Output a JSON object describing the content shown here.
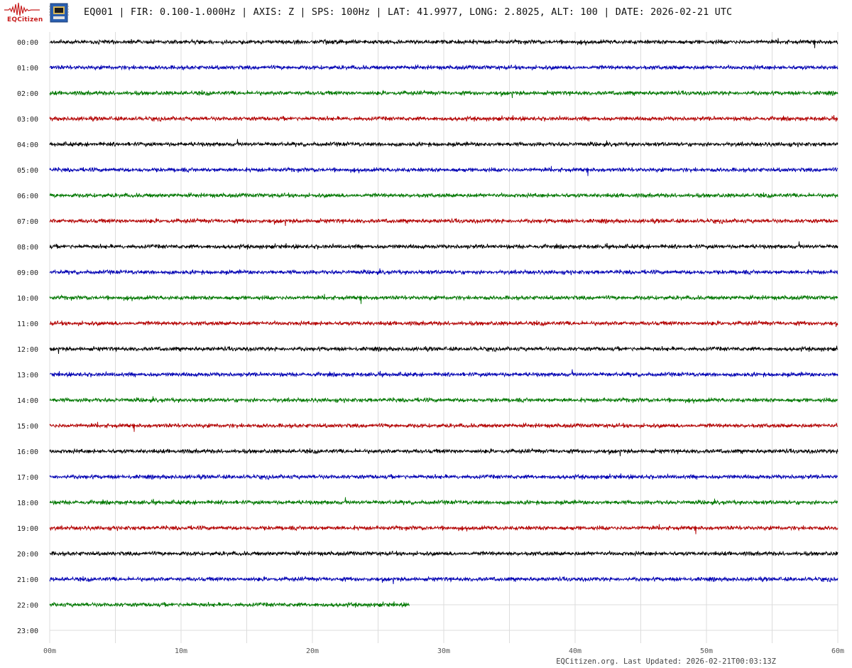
{
  "header": {
    "logo_text": "EQCitizen",
    "title": "EQ001 | FIR: 0.100-1.000Hz | AXIS: Z | SPS: 100Hz | LAT: 41.9977, LONG: 2.8025, ALT: 100 | DATE: 2026-02-21 UTC"
  },
  "footer": {
    "last_updated": "EQCitizen.org. Last Updated: 2026-02-21T00:03:13Z"
  },
  "colors": {
    "trace_cycle": [
      "#000000",
      "#0000b4",
      "#007800",
      "#b40000"
    ],
    "grid": "#dcdcdc",
    "logo": "#c81e1e"
  },
  "chart_data": {
    "type": "line",
    "title": "",
    "xlabel": "",
    "ylabel": "",
    "x_unit": "minutes",
    "xlim": [
      0,
      60
    ],
    "x_ticks": [
      "00m",
      "10m",
      "20m",
      "30m",
      "40m",
      "50m",
      "60m"
    ],
    "y_ticks": [
      "00:00",
      "01:00",
      "02:00",
      "03:00",
      "04:00",
      "05:00",
      "06:00",
      "07:00",
      "08:00",
      "09:00",
      "10:00",
      "11:00",
      "12:00",
      "13:00",
      "14:00",
      "15:00",
      "16:00",
      "17:00",
      "18:00",
      "19:00",
      "20:00",
      "21:00",
      "22:00",
      "23:00"
    ],
    "grid": true,
    "series": [
      {
        "hour": "00:00",
        "color": "#000000",
        "end_minute": 60
      },
      {
        "hour": "01:00",
        "color": "#0000b4",
        "end_minute": 60
      },
      {
        "hour": "02:00",
        "color": "#007800",
        "end_minute": 60
      },
      {
        "hour": "03:00",
        "color": "#b40000",
        "end_minute": 60
      },
      {
        "hour": "04:00",
        "color": "#000000",
        "end_minute": 60
      },
      {
        "hour": "05:00",
        "color": "#0000b4",
        "end_minute": 60
      },
      {
        "hour": "06:00",
        "color": "#007800",
        "end_minute": 60
      },
      {
        "hour": "07:00",
        "color": "#b40000",
        "end_minute": 60
      },
      {
        "hour": "08:00",
        "color": "#000000",
        "end_minute": 60
      },
      {
        "hour": "09:00",
        "color": "#0000b4",
        "end_minute": 60
      },
      {
        "hour": "10:00",
        "color": "#007800",
        "end_minute": 60
      },
      {
        "hour": "11:00",
        "color": "#b40000",
        "end_minute": 60
      },
      {
        "hour": "12:00",
        "color": "#000000",
        "end_minute": 60
      },
      {
        "hour": "13:00",
        "color": "#0000b4",
        "end_minute": 60
      },
      {
        "hour": "14:00",
        "color": "#007800",
        "end_minute": 60
      },
      {
        "hour": "15:00",
        "color": "#b40000",
        "end_minute": 60
      },
      {
        "hour": "16:00",
        "color": "#000000",
        "end_minute": 60
      },
      {
        "hour": "17:00",
        "color": "#0000b4",
        "end_minute": 60
      },
      {
        "hour": "18:00",
        "color": "#007800",
        "end_minute": 60
      },
      {
        "hour": "19:00",
        "color": "#b40000",
        "end_minute": 60
      },
      {
        "hour": "20:00",
        "color": "#000000",
        "end_minute": 60
      },
      {
        "hour": "21:00",
        "color": "#0000b4",
        "end_minute": 60
      },
      {
        "hour": "22:00",
        "color": "#007800",
        "end_minute": 27.4
      },
      {
        "hour": "23:00",
        "color": "#000000",
        "end_minute": 0
      }
    ]
  }
}
